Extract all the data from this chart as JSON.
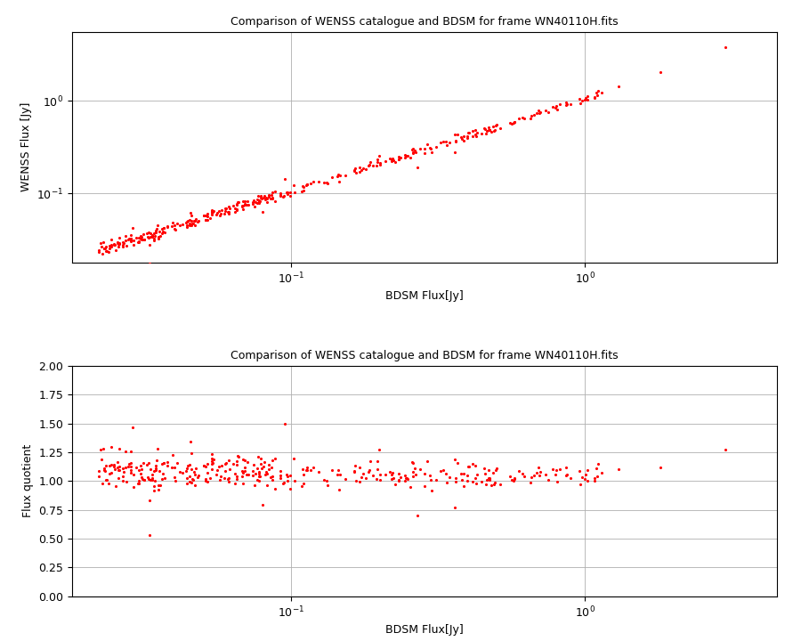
{
  "title": "Comparison of WENSS catalogue and BDSM for frame WN40110H.fits",
  "xlabel1": "BDSM Flux[Jy]",
  "ylabel1": "WENSS Flux [Jy]",
  "xlabel2": "BDSM Flux[Jy]",
  "ylabel2": "Flux quotient",
  "dot_color": "#ff0000",
  "dot_size": 5,
  "background_color": "#ffffff",
  "grid_color": "#b0b0b0",
  "ylim2": [
    0.0,
    2.0
  ],
  "yticks2": [
    0.0,
    0.25,
    0.5,
    0.75,
    1.0,
    1.25,
    1.5,
    1.75,
    2.0
  ],
  "seed": 42,
  "figsize": [
    9.0,
    7.2
  ],
  "dpi": 100
}
